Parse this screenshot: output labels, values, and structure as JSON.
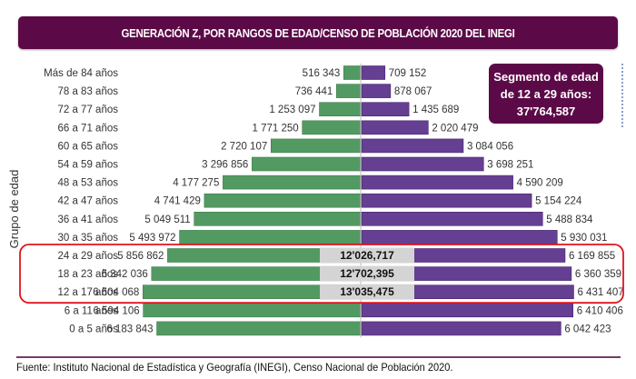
{
  "chart_data": {
    "type": "bar",
    "orientation": "horizontal-population-pyramid",
    "title": "GENERACIÓN Z, POR RANGOS DE EDAD/CENSO DE POBLACIÓN 2020 DEL INEGI",
    "ylabel": "Grupo de edad",
    "xlabel": "",
    "categories": [
      "Más de 84 años",
      "78 a 83 años",
      "72 a 77 años",
      "66 a 71 años",
      "60 a 65 años",
      "54 a 59 años",
      "48 a 53 años",
      "42 a 47 años",
      "36 a 41 años",
      "30 a 35 años",
      "24 a 29 años",
      "18 a 23 años",
      "12 a 17 años",
      "6 a 11 años",
      "0 a 5 años"
    ],
    "series": [
      {
        "name": "left",
        "side": "left",
        "color": "#529a62",
        "values": [
          516343,
          736441,
          1253097,
          1771250,
          2720107,
          3296856,
          4177275,
          4741429,
          5049511,
          5493972,
          5856862,
          6342036,
          6604068,
          6594106,
          6183843
        ],
        "labels": [
          "516 343",
          "736 441",
          "1 253 097",
          "1 771 250",
          "2 720 107",
          "3 296 856",
          "4 177 275",
          "4 741 429",
          "5 049 511",
          "5 493 972",
          "5 856 862",
          "6 342 036",
          "6 604 068",
          "6 594 106",
          "6 183 843"
        ]
      },
      {
        "name": "right",
        "side": "right",
        "color": "#653f92",
        "values": [
          709152,
          878067,
          1435689,
          2020479,
          3084056,
          3698251,
          4590209,
          5154224,
          5488834,
          5930031,
          6169855,
          6360359,
          6431407,
          6410406,
          6042423
        ],
        "labels": [
          "709 152",
          "878 067",
          "1 435 689",
          "2 020 479",
          "3 084 056",
          "3 698 251",
          "4 590 209",
          "5 154 224",
          "5 488 834",
          "5 930 031",
          "6 169 855",
          "6 360 359",
          "6 431 407",
          "6 410 406",
          "6 042 423"
        ]
      }
    ],
    "highlighted_categories": [
      "24 a 29 años",
      "18 a 23 años",
      "12 a 17 años"
    ],
    "highlight_totals": [
      "12'026,717",
      "12'702,395",
      "13'035,475"
    ],
    "highlight_color": "#e0141e",
    "annotation": {
      "lines": [
        "Segmento de edad",
        "de 12 a 29 años:",
        "37'764,587"
      ]
    },
    "grid": false,
    "legend": "none"
  },
  "footer": {
    "source": "Fuente: Instituto Nacional de Estadística y Geografía (INEGI), Censo Nacional de Población 2020."
  }
}
